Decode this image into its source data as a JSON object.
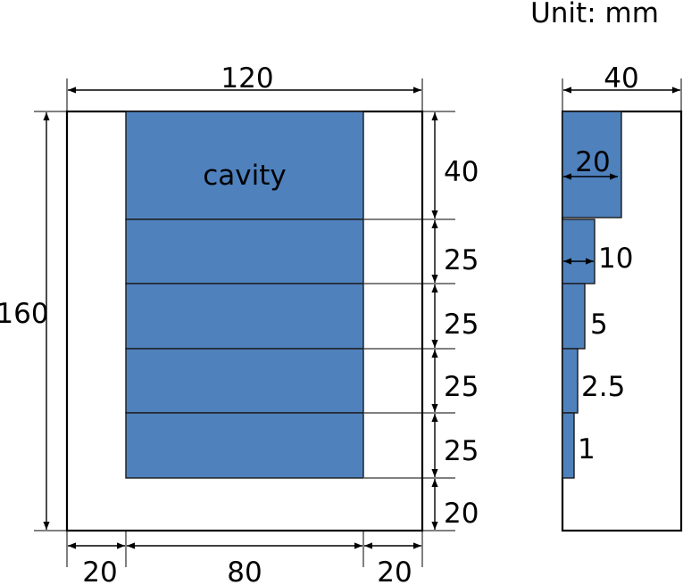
{
  "unit_label": "Unit: mm",
  "front": {
    "width_label": "120",
    "height_label": "160",
    "cavity_label": "cavity",
    "bottom_dims": [
      "20",
      "80",
      "20"
    ],
    "right_dims": [
      "40",
      "25",
      "25",
      "25",
      "25",
      "20"
    ]
  },
  "side": {
    "width_label": "40",
    "step_labels": [
      "20",
      "10",
      "5",
      "2.5",
      "1"
    ]
  },
  "colors": {
    "cavity_fill": "#4f81bd",
    "outline": "#000000"
  }
}
